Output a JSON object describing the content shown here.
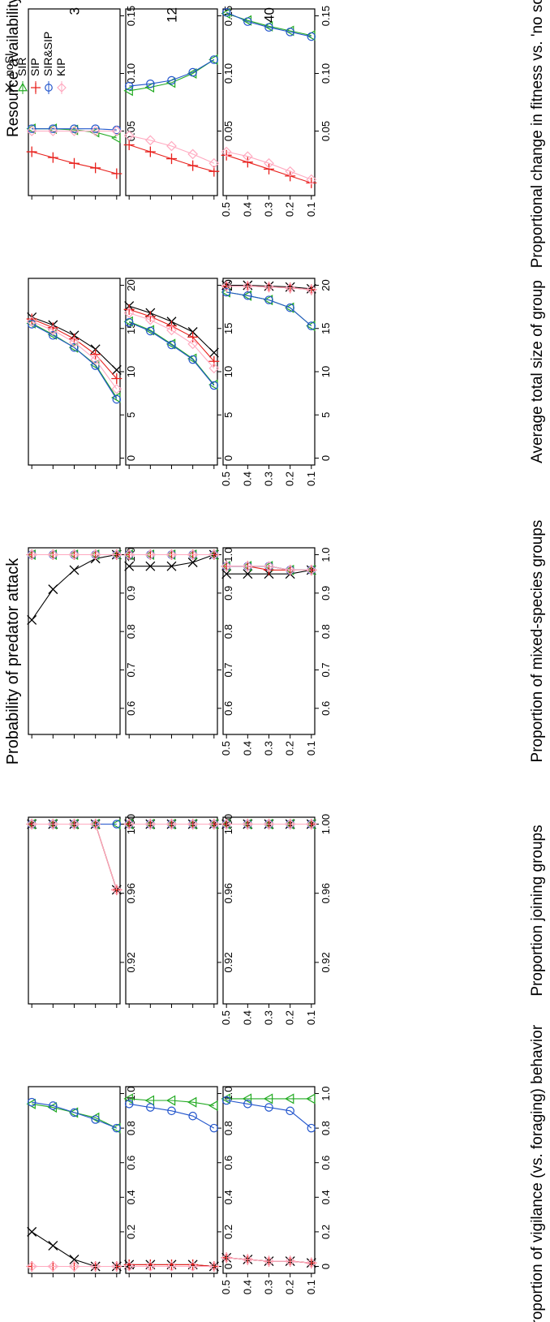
{
  "figure": {
    "x_axis_label": "Probability of predator attack",
    "resource_title": "Resource availability (energy units)",
    "resource_levels": [
      "3",
      "12",
      "40"
    ]
  },
  "legend": [
    {
      "name": "noSI",
      "color": "#000000",
      "marker": "x"
    },
    {
      "name": "SIR",
      "color": "#22aa22",
      "marker": "triangle"
    },
    {
      "name": "SIP",
      "color": "#e8201c",
      "marker": "plus"
    },
    {
      "name": "SIR&SIP",
      "color": "#2255cc",
      "marker": "circle"
    },
    {
      "name": "KIP",
      "color": "#ffaac0",
      "marker": "diamond"
    }
  ],
  "chart_data": [
    {
      "type": "line",
      "ylabel": "Proportion of vigilance (vs. foraging) behavior",
      "ylim": [
        0,
        1
      ],
      "yticks": [
        "0",
        "0.2",
        "0.4",
        "0.6",
        "0.8",
        "1.0"
      ],
      "x": [
        0.1,
        0.2,
        0.3,
        0.4,
        0.5
      ],
      "xticks": [
        "0.1",
        "0.2",
        "0.3",
        "0.4",
        "0.5"
      ],
      "panels": [
        {
          "resource": "3",
          "series": [
            {
              "name": "noSI",
              "values": [
                0.0,
                0.0,
                0.04,
                0.12,
                0.2
              ]
            },
            {
              "name": "SIR",
              "values": [
                0.8,
                0.86,
                0.89,
                0.92,
                0.94
              ]
            },
            {
              "name": "SIP",
              "values": [
                0.0,
                0.0,
                0.0,
                0.0,
                0.0
              ]
            },
            {
              "name": "SIR&SIP",
              "values": [
                0.8,
                0.85,
                0.89,
                0.93,
                0.95
              ]
            },
            {
              "name": "KIP",
              "values": [
                0.0,
                0.0,
                0.0,
                0.0,
                0.0
              ]
            }
          ]
        },
        {
          "resource": "12",
          "series": [
            {
              "name": "noSI",
              "values": [
                0.0,
                0.01,
                0.01,
                0.01,
                0.01
              ]
            },
            {
              "name": "SIR",
              "values": [
                0.93,
                0.95,
                0.96,
                0.96,
                0.97
              ]
            },
            {
              "name": "SIP",
              "values": [
                0.0,
                0.01,
                0.01,
                0.01,
                0.01
              ]
            },
            {
              "name": "SIR&SIP",
              "values": [
                0.8,
                0.87,
                0.9,
                0.92,
                0.94
              ]
            },
            {
              "name": "KIP",
              "values": [
                0.0,
                0.0,
                0.0,
                0.0,
                0.0
              ]
            }
          ]
        },
        {
          "resource": "40",
          "series": [
            {
              "name": "noSI",
              "values": [
                0.02,
                0.03,
                0.03,
                0.04,
                0.05
              ]
            },
            {
              "name": "SIR",
              "values": [
                0.97,
                0.97,
                0.97,
                0.97,
                0.97
              ]
            },
            {
              "name": "SIP",
              "values": [
                0.02,
                0.03,
                0.03,
                0.04,
                0.05
              ]
            },
            {
              "name": "SIR&SIP",
              "values": [
                0.8,
                0.9,
                0.92,
                0.94,
                0.96
              ]
            },
            {
              "name": "KIP",
              "values": [
                0.02,
                0.03,
                0.03,
                0.04,
                0.05
              ]
            }
          ]
        }
      ]
    },
    {
      "type": "line",
      "ylabel": "Proportion joining groups",
      "ylim": [
        0.9,
        1.0
      ],
      "yticks": [
        "0.92",
        "0.96",
        "1.00"
      ],
      "x": [
        0.1,
        0.2,
        0.3,
        0.4,
        0.5
      ],
      "xticks": [
        "0.1",
        "0.2",
        "0.3",
        "0.4",
        "0.5"
      ],
      "panels": [
        {
          "resource": "3",
          "series": [
            {
              "name": "noSI",
              "values": [
                0.962,
                1.0,
                1.0,
                1.0,
                1.0
              ]
            },
            {
              "name": "SIR",
              "values": [
                1.0,
                1.0,
                1.0,
                1.0,
                1.0
              ]
            },
            {
              "name": "SIP",
              "values": [
                0.962,
                1.0,
                1.0,
                1.0,
                1.0
              ]
            },
            {
              "name": "SIR&SIP",
              "values": [
                1.0,
                1.0,
                1.0,
                1.0,
                1.0
              ]
            },
            {
              "name": "KIP",
              "values": [
                0.962,
                1.0,
                1.0,
                1.0,
                1.0
              ]
            }
          ]
        },
        {
          "resource": "12",
          "series": [
            {
              "name": "noSI",
              "values": [
                1.0,
                1.0,
                1.0,
                1.0,
                1.0
              ]
            },
            {
              "name": "SIR",
              "values": [
                1.0,
                1.0,
                1.0,
                1.0,
                1.0
              ]
            },
            {
              "name": "SIP",
              "values": [
                1.0,
                1.0,
                1.0,
                1.0,
                1.0
              ]
            },
            {
              "name": "SIR&SIP",
              "values": [
                1.0,
                1.0,
                1.0,
                1.0,
                1.0
              ]
            },
            {
              "name": "KIP",
              "values": [
                1.0,
                1.0,
                1.0,
                1.0,
                1.0
              ]
            }
          ]
        },
        {
          "resource": "40",
          "series": [
            {
              "name": "noSI",
              "values": [
                1.0,
                1.0,
                1.0,
                1.0,
                1.0
              ]
            },
            {
              "name": "SIR",
              "values": [
                1.0,
                1.0,
                1.0,
                1.0,
                1.0
              ]
            },
            {
              "name": "SIP",
              "values": [
                1.0,
                1.0,
                1.0,
                1.0,
                1.0
              ]
            },
            {
              "name": "SIR&SIP",
              "values": [
                1.0,
                1.0,
                1.0,
                1.0,
                1.0
              ]
            },
            {
              "name": "KIP",
              "values": [
                1.0,
                1.0,
                1.0,
                1.0,
                1.0
              ]
            }
          ]
        }
      ]
    },
    {
      "type": "line",
      "ylabel": "Proportion of mixed-species groups",
      "ylim": [
        0.55,
        1.0
      ],
      "yticks": [
        "0.6",
        "0.7",
        "0.8",
        "0.9",
        "1.0"
      ],
      "x": [
        0.1,
        0.2,
        0.3,
        0.4,
        0.5
      ],
      "xticks": [
        "0.1",
        "0.2",
        "0.3",
        "0.4",
        "0.5"
      ],
      "panels": [
        {
          "resource": "3",
          "series": [
            {
              "name": "noSI",
              "values": [
                1.0,
                0.99,
                0.96,
                0.91,
                0.83
              ]
            },
            {
              "name": "SIR",
              "values": [
                1.0,
                1.0,
                1.0,
                1.0,
                1.0
              ]
            },
            {
              "name": "SIP",
              "values": [
                1.0,
                1.0,
                1.0,
                1.0,
                1.0
              ]
            },
            {
              "name": "SIR&SIP",
              "values": [
                1.0,
                1.0,
                1.0,
                1.0,
                1.0
              ]
            },
            {
              "name": "KIP",
              "values": [
                1.0,
                1.0,
                1.0,
                1.0,
                1.0
              ]
            }
          ]
        },
        {
          "resource": "12",
          "series": [
            {
              "name": "noSI",
              "values": [
                1.0,
                0.98,
                0.97,
                0.97,
                0.97
              ]
            },
            {
              "name": "SIR",
              "values": [
                1.0,
                1.0,
                1.0,
                1.0,
                1.0
              ]
            },
            {
              "name": "SIP",
              "values": [
                1.0,
                1.0,
                1.0,
                1.0,
                1.0
              ]
            },
            {
              "name": "SIR&SIP",
              "values": [
                1.0,
                1.0,
                1.0,
                1.0,
                1.0
              ]
            },
            {
              "name": "KIP",
              "values": [
                1.0,
                1.0,
                1.0,
                1.0,
                1.0
              ]
            }
          ]
        },
        {
          "resource": "40",
          "series": [
            {
              "name": "noSI",
              "values": [
                0.96,
                0.95,
                0.95,
                0.95,
                0.95
              ]
            },
            {
              "name": "SIR",
              "values": [
                0.96,
                0.96,
                0.97,
                0.97,
                0.97
              ]
            },
            {
              "name": "SIP",
              "values": [
                0.96,
                0.96,
                0.96,
                0.97,
                0.97
              ]
            },
            {
              "name": "SIR&SIP",
              "values": [
                0.96,
                0.96,
                0.97,
                0.97,
                0.97
              ]
            },
            {
              "name": "KIP",
              "values": [
                0.96,
                0.96,
                0.97,
                0.97,
                0.97
              ]
            }
          ]
        }
      ]
    },
    {
      "type": "line",
      "ylabel": "Average total size of group",
      "ylim": [
        0,
        20
      ],
      "yticks": [
        "0",
        "5",
        "10",
        "15",
        "20"
      ],
      "x": [
        0.1,
        0.2,
        0.3,
        0.4,
        0.5
      ],
      "xticks": [
        "0.1",
        "0.2",
        "0.3",
        "0.4",
        "0.5"
      ],
      "panels": [
        {
          "resource": "3",
          "series": [
            {
              "name": "noSI",
              "values": [
                10.2,
                12.6,
                14.2,
                15.4,
                16.3
              ]
            },
            {
              "name": "SIR",
              "values": [
                7.0,
                10.8,
                12.8,
                14.3,
                15.6
              ]
            },
            {
              "name": "SIP",
              "values": [
                9.2,
                12.0,
                13.8,
                15.1,
                16.1
              ]
            },
            {
              "name": "SIR&SIP",
              "values": [
                6.8,
                10.7,
                12.8,
                14.2,
                15.5
              ]
            },
            {
              "name": "KIP",
              "values": [
                8.0,
                11.4,
                13.4,
                14.8,
                15.8
              ]
            }
          ]
        },
        {
          "resource": "12",
          "series": [
            {
              "name": "noSI",
              "values": [
                12.2,
                14.6,
                15.8,
                16.8,
                17.6
              ]
            },
            {
              "name": "SIR",
              "values": [
                8.5,
                11.5,
                13.2,
                14.8,
                15.8
              ]
            },
            {
              "name": "SIP",
              "values": [
                11.2,
                14.0,
                15.3,
                16.4,
                17.2
              ]
            },
            {
              "name": "SIR&SIP",
              "values": [
                8.4,
                11.4,
                13.1,
                14.7,
                15.7
              ]
            },
            {
              "name": "KIP",
              "values": [
                10.4,
                13.2,
                14.8,
                16.0,
                16.8
              ]
            }
          ]
        },
        {
          "resource": "40",
          "series": [
            {
              "name": "noSI",
              "values": [
                19.6,
                19.8,
                19.9,
                20.0,
                20.0
              ]
            },
            {
              "name": "SIR",
              "values": [
                15.3,
                17.4,
                18.3,
                18.8,
                19.2
              ]
            },
            {
              "name": "SIP",
              "values": [
                19.5,
                19.7,
                19.8,
                19.9,
                19.9
              ]
            },
            {
              "name": "SIR&SIP",
              "values": [
                15.3,
                17.4,
                18.3,
                18.8,
                19.2
              ]
            },
            {
              "name": "KIP",
              "values": [
                19.5,
                19.7,
                19.8,
                19.9,
                19.9
              ]
            }
          ]
        }
      ]
    },
    {
      "type": "line",
      "ylabel": "Proportional change in fitness vs. 'no social info.'",
      "ylim": [
        0,
        0.15
      ],
      "yticks": [
        "0.05",
        "0.10",
        "0.15"
      ],
      "x": [
        0.1,
        0.2,
        0.3,
        0.4,
        0.5
      ],
      "xticks": [
        "0.1",
        "0.2",
        "0.3",
        "0.4",
        "0.5"
      ],
      "panels": [
        {
          "resource": "3",
          "series": [
            {
              "name": "SIR",
              "values": [
                0.044,
                0.049,
                0.051,
                0.052,
                0.052
              ]
            },
            {
              "name": "SIP",
              "values": [
                0.013,
                0.018,
                0.022,
                0.027,
                0.032
              ]
            },
            {
              "name": "SIR&SIP",
              "values": [
                0.051,
                0.052,
                0.052,
                0.052,
                0.052
              ]
            },
            {
              "name": "KIP",
              "values": [
                0.05,
                0.05,
                0.05,
                0.05,
                0.05
              ]
            }
          ]
        },
        {
          "resource": "12",
          "series": [
            {
              "name": "SIR",
              "values": [
                0.112,
                0.1,
                0.092,
                0.088,
                0.085
              ]
            },
            {
              "name": "SIP",
              "values": [
                0.015,
                0.02,
                0.026,
                0.032,
                0.038
              ]
            },
            {
              "name": "SIR&SIP",
              "values": [
                0.112,
                0.101,
                0.094,
                0.091,
                0.089
              ]
            },
            {
              "name": "KIP",
              "values": [
                0.022,
                0.03,
                0.037,
                0.042,
                0.046
              ]
            }
          ]
        },
        {
          "resource": "40",
          "series": [
            {
              "name": "SIR",
              "values": [
                0.133,
                0.137,
                0.141,
                0.146,
                0.152
              ]
            },
            {
              "name": "SIP",
              "values": [
                0.005,
                0.011,
                0.017,
                0.023,
                0.029
              ]
            },
            {
              "name": "SIR&SIP",
              "values": [
                0.132,
                0.136,
                0.14,
                0.145,
                0.153
              ]
            },
            {
              "name": "KIP",
              "values": [
                0.008,
                0.015,
                0.022,
                0.028,
                0.032
              ]
            }
          ]
        }
      ]
    }
  ]
}
